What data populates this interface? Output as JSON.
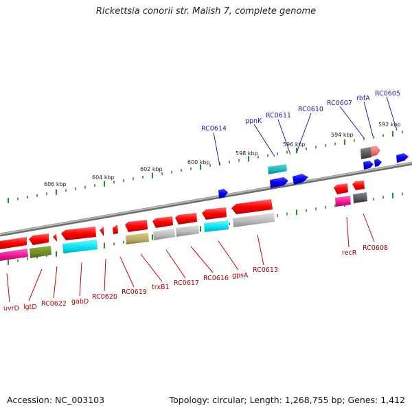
{
  "title": "Rickettsia conorii str. Malish 7, complete genome",
  "footer": {
    "accession": "Accession: NC_003103",
    "summary": "Topology: circular; Length: 1,268,755 bp; Genes: 1,412"
  },
  "colors": {
    "backbone": "#8a8a8a",
    "ticks": "#1f8f1f",
    "top_labels": "#1a1aa6",
    "bottom_labels": "#b00000"
  },
  "scale_labels": [
    "606 kbp",
    "604 kbp",
    "602 kbp",
    "600 kbp",
    "598 kbp",
    "596 kbp",
    "594 kbp",
    "592 kbp"
  ],
  "top_labels": [
    "RC0614",
    "ppnK",
    "RC0611",
    "RC0610",
    "RC0607",
    "rbfA",
    "RC0605"
  ],
  "bottom_labels": [
    "uvrD",
    "lgtD",
    "RC0622",
    "gabD",
    "RC0620",
    "RC0619",
    "trxB1",
    "RC0617",
    "RC0616",
    "gpsA",
    "RC0613",
    "recR",
    "RC0608"
  ]
}
